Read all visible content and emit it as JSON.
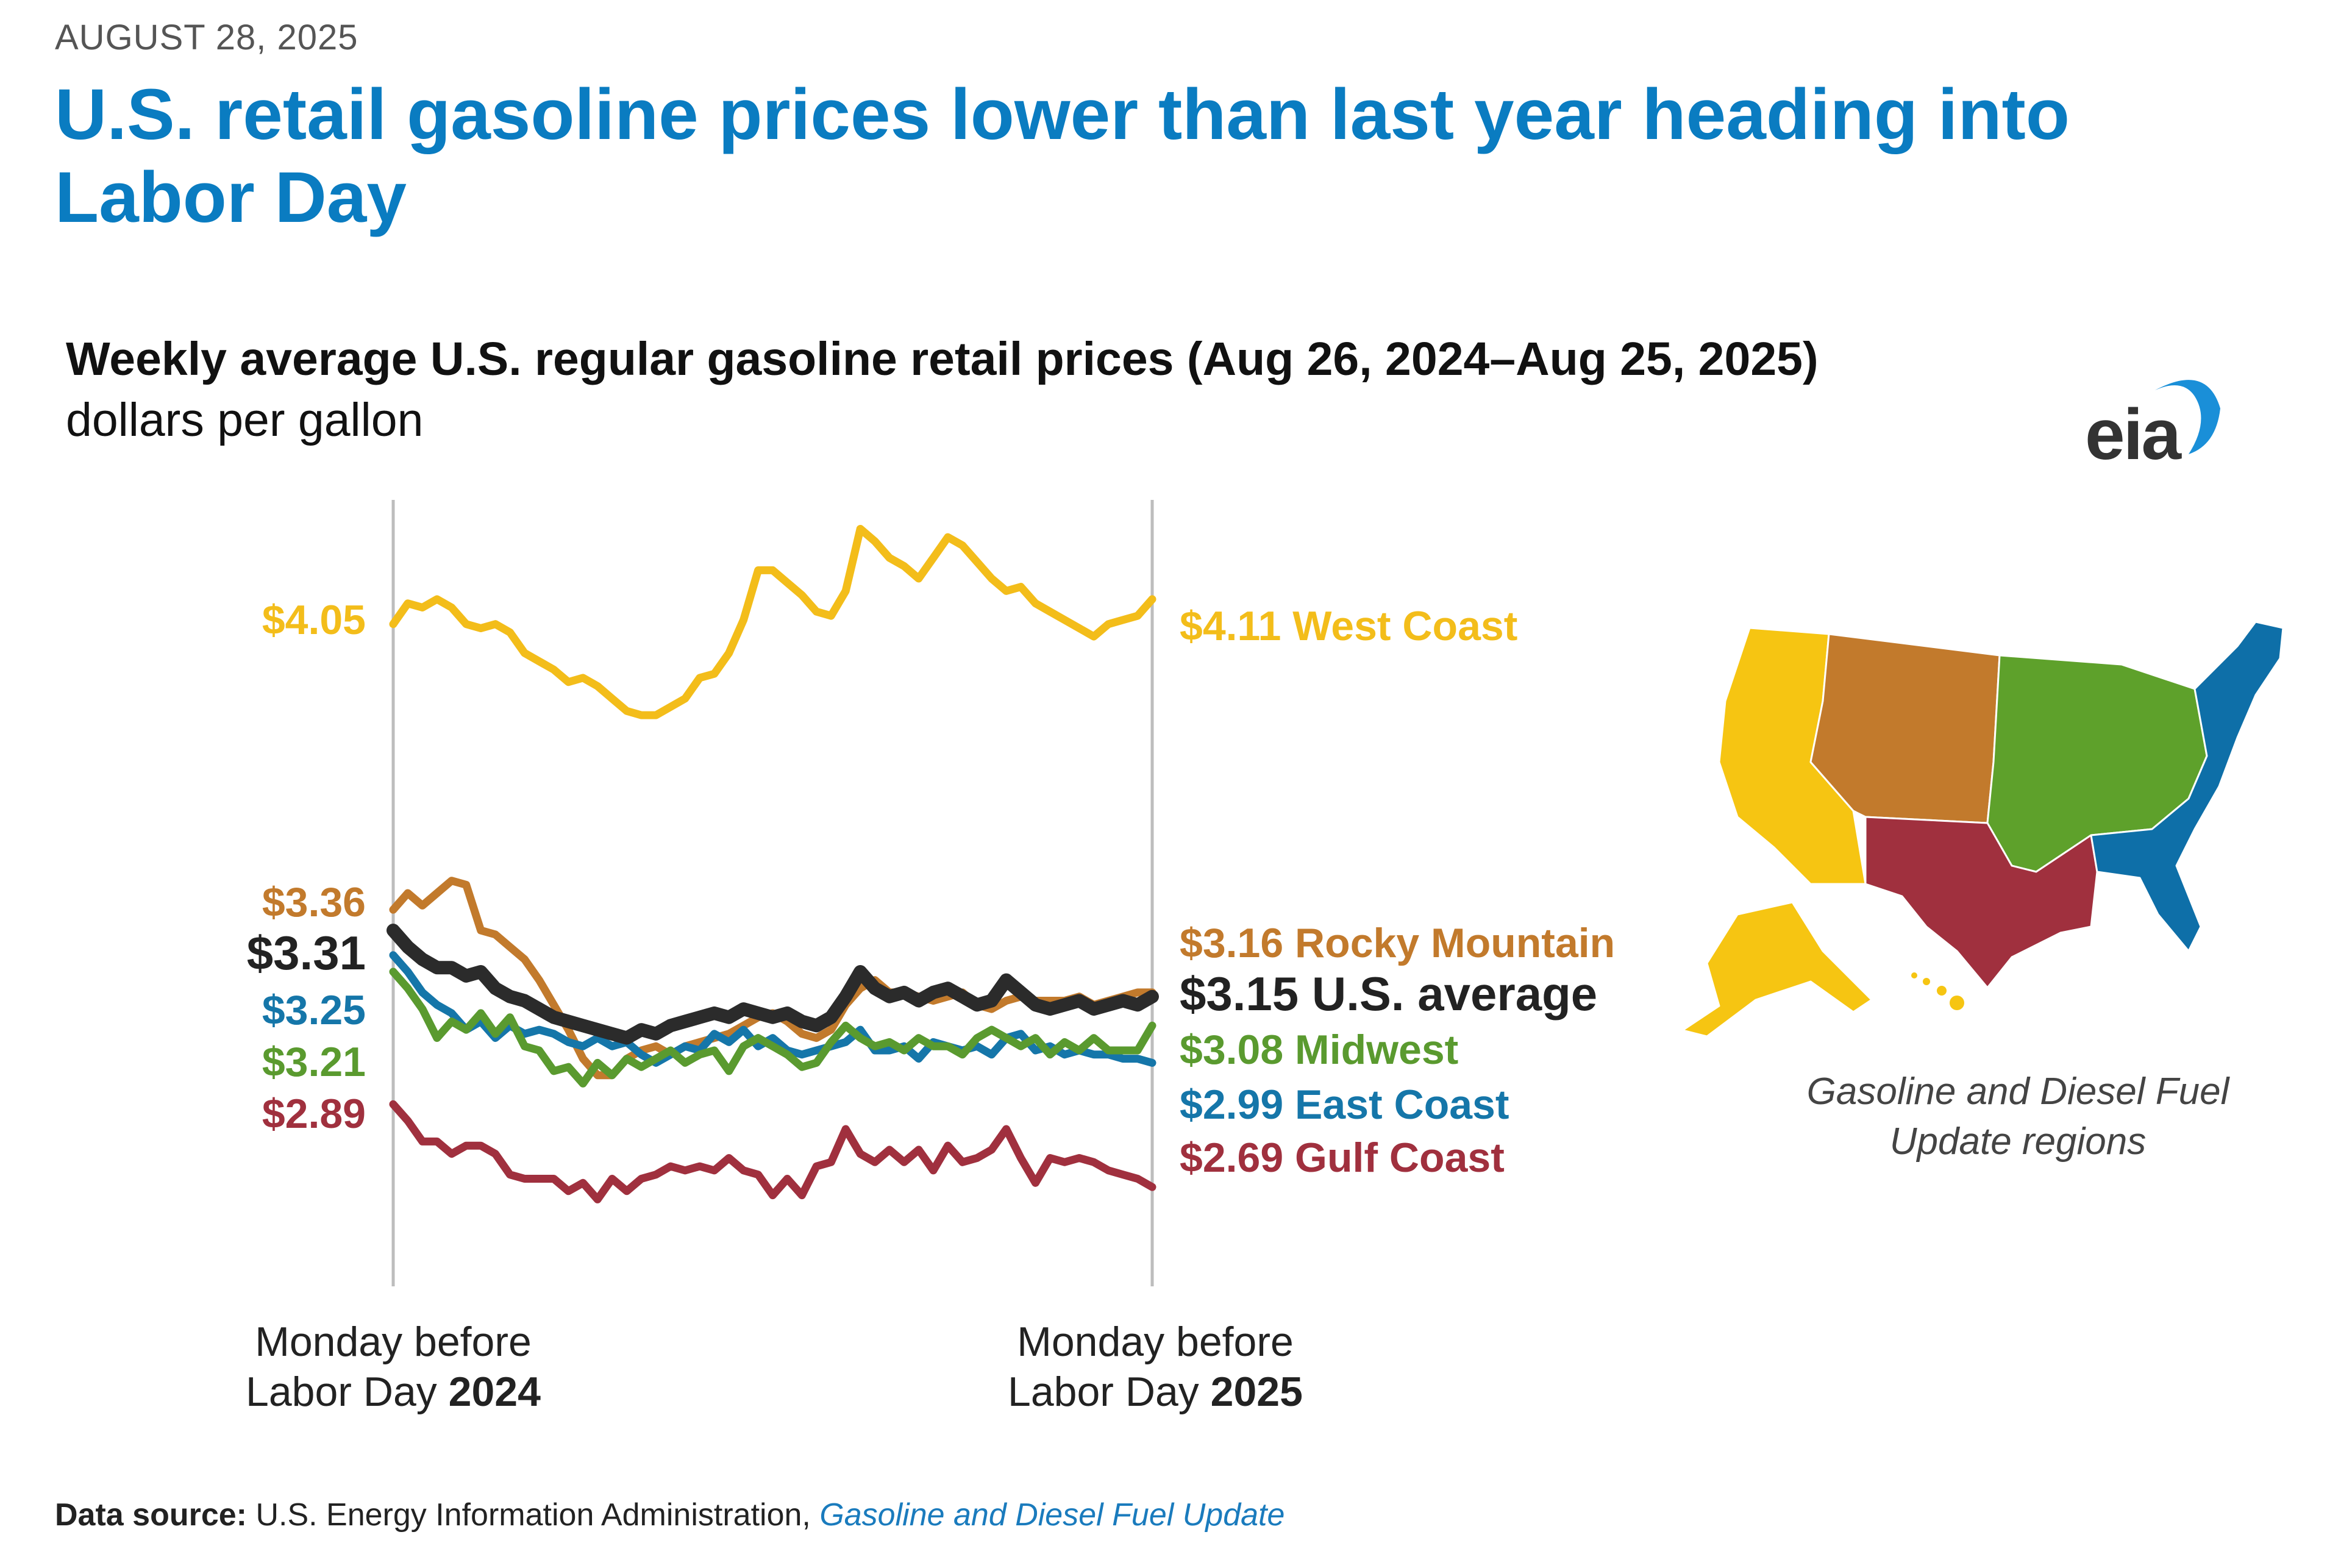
{
  "header": {
    "date": "AUGUST 28, 2025",
    "headline": "U.S. retail gasoline prices lower than last year heading into Labor Day"
  },
  "logo": {
    "text": "eia",
    "accent_color": "#1a8fd8"
  },
  "map": {
    "caption_line1": "Gasoline and Diesel Fuel",
    "caption_line2": "Update regions"
  },
  "footer": {
    "source_label": "Data source:",
    "source_text": "U.S. Energy Information Administration,",
    "source_link": "Gasoline and Diesel Fuel Update"
  },
  "chart_data": {
    "type": "line",
    "title": "Weekly average U.S. regular gasoline retail prices (Aug 26, 2024–Aug 25, 2025)",
    "subtitle": "dollars per gallon",
    "x_start_label": {
      "line1": "Monday before",
      "line2_prefix": "Labor Day ",
      "line2_bold": "2024"
    },
    "x_end_label": {
      "line1": "Monday before",
      "line2_prefix": "Labor Day ",
      "line2_bold": "2025"
    },
    "ylim": [
      2.45,
      4.35
    ],
    "weeks": 53,
    "series": [
      {
        "name": "West Coast",
        "color": "#f3bd1a",
        "start_label": "$4.05",
        "end_label": "$4.11 West Coast",
        "values": [
          4.05,
          4.1,
          4.09,
          4.11,
          4.09,
          4.05,
          4.04,
          4.05,
          4.03,
          3.98,
          3.96,
          3.94,
          3.91,
          3.92,
          3.9,
          3.87,
          3.84,
          3.83,
          3.83,
          3.85,
          3.87,
          3.92,
          3.93,
          3.98,
          4.06,
          4.18,
          4.18,
          4.15,
          4.12,
          4.08,
          4.07,
          4.13,
          4.28,
          4.25,
          4.21,
          4.19,
          4.16,
          4.21,
          4.26,
          4.24,
          4.2,
          4.16,
          4.13,
          4.14,
          4.1,
          4.08,
          4.06,
          4.04,
          4.02,
          4.05,
          4.06,
          4.07,
          4.11
        ]
      },
      {
        "name": "Rocky Mountain",
        "color": "#c27a2c",
        "start_label": "$3.36",
        "end_label": "$3.16 Rocky Mountain",
        "values": [
          3.36,
          3.4,
          3.37,
          3.4,
          3.43,
          3.42,
          3.31,
          3.3,
          3.27,
          3.24,
          3.19,
          3.13,
          3.07,
          3.0,
          2.96,
          2.96,
          3.0,
          3.02,
          3.03,
          3.01,
          3.03,
          3.04,
          3.05,
          3.06,
          3.08,
          3.1,
          3.11,
          3.09,
          3.06,
          3.05,
          3.07,
          3.13,
          3.17,
          3.19,
          3.16,
          3.16,
          3.15,
          3.14,
          3.15,
          3.16,
          3.13,
          3.12,
          3.14,
          3.15,
          3.14,
          3.14,
          3.14,
          3.15,
          3.13,
          3.14,
          3.15,
          3.16,
          3.16
        ]
      },
      {
        "name": "East Coast",
        "color": "#1576a9",
        "start_label": "$3.25",
        "end_label": "$2.99 East Coast",
        "values": [
          3.25,
          3.21,
          3.16,
          3.13,
          3.11,
          3.07,
          3.09,
          3.05,
          3.08,
          3.06,
          3.07,
          3.06,
          3.04,
          3.03,
          3.05,
          3.03,
          3.04,
          3.01,
          2.99,
          3.01,
          3.03,
          3.02,
          3.06,
          3.04,
          3.07,
          3.03,
          3.05,
          3.02,
          3.01,
          3.02,
          3.03,
          3.04,
          3.07,
          3.02,
          3.02,
          3.03,
          3.0,
          3.04,
          3.03,
          3.02,
          3.03,
          3.01,
          3.05,
          3.06,
          3.02,
          3.03,
          3.01,
          3.02,
          3.01,
          3.01,
          3.0,
          3.0,
          2.99
        ]
      },
      {
        "name": "Midwest",
        "color": "#5a9a2f",
        "start_label": "$3.21",
        "end_label": "$3.08 Midwest",
        "values": [
          3.21,
          3.17,
          3.12,
          3.05,
          3.09,
          3.07,
          3.11,
          3.06,
          3.1,
          3.03,
          3.02,
          2.97,
          2.98,
          2.94,
          2.99,
          2.96,
          3.0,
          2.98,
          3.0,
          3.02,
          2.99,
          3.01,
          3.02,
          2.97,
          3.03,
          3.05,
          3.03,
          3.01,
          2.98,
          2.99,
          3.04,
          3.08,
          3.05,
          3.03,
          3.04,
          3.02,
          3.05,
          3.03,
          3.03,
          3.01,
          3.05,
          3.07,
          3.05,
          3.03,
          3.05,
          3.01,
          3.04,
          3.02,
          3.05,
          3.02,
          3.02,
          3.02,
          3.08
        ]
      },
      {
        "name": "Gulf Coast",
        "color": "#a0303e",
        "start_label": "$2.89",
        "end_label": "$2.69 Gulf Coast",
        "values": [
          2.89,
          2.85,
          2.8,
          2.8,
          2.77,
          2.79,
          2.79,
          2.77,
          2.72,
          2.71,
          2.71,
          2.71,
          2.68,
          2.7,
          2.66,
          2.71,
          2.68,
          2.71,
          2.72,
          2.74,
          2.73,
          2.74,
          2.73,
          2.76,
          2.73,
          2.72,
          2.67,
          2.71,
          2.67,
          2.74,
          2.75,
          2.83,
          2.77,
          2.75,
          2.78,
          2.75,
          2.78,
          2.73,
          2.79,
          2.75,
          2.76,
          2.78,
          2.83,
          2.76,
          2.7,
          2.76,
          2.75,
          2.76,
          2.75,
          2.73,
          2.72,
          2.71,
          2.69
        ]
      },
      {
        "name": "U.S. average",
        "color": "#2b2b2b",
        "start_label": "$3.31",
        "end_label": "$3.15 U.S. average",
        "values": [
          3.31,
          3.27,
          3.24,
          3.22,
          3.22,
          3.2,
          3.21,
          3.17,
          3.15,
          3.14,
          3.12,
          3.1,
          3.09,
          3.08,
          3.07,
          3.06,
          3.05,
          3.07,
          3.06,
          3.08,
          3.09,
          3.1,
          3.11,
          3.1,
          3.12,
          3.11,
          3.1,
          3.11,
          3.09,
          3.08,
          3.1,
          3.15,
          3.21,
          3.17,
          3.15,
          3.16,
          3.14,
          3.16,
          3.17,
          3.15,
          3.13,
          3.14,
          3.19,
          3.16,
          3.13,
          3.12,
          3.13,
          3.14,
          3.12,
          3.13,
          3.14,
          3.13,
          3.15
        ]
      }
    ]
  }
}
